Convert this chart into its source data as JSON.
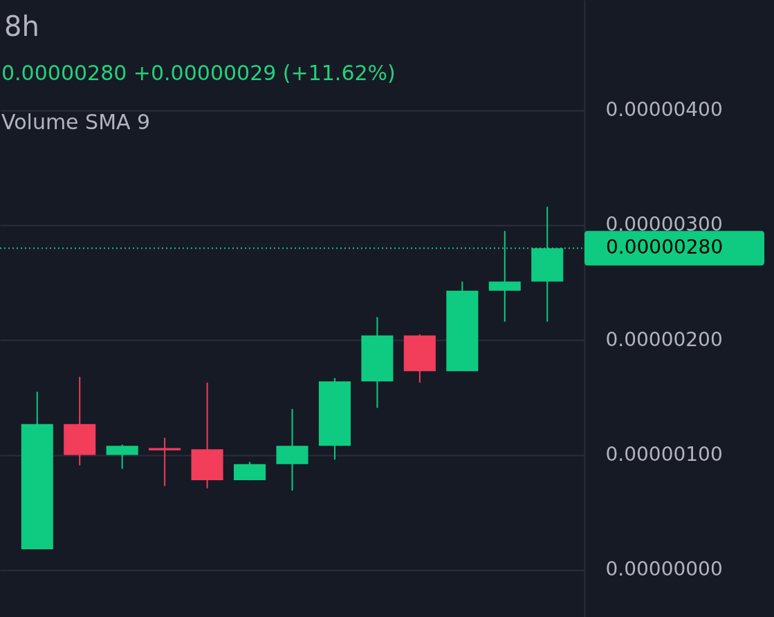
{
  "chart_data": {
    "type": "candlestick",
    "title": "8h",
    "annotations": [
      "0.00000280  +0.00000029 (+11.62%)",
      "Volume SMA 9"
    ],
    "categories": [
      null,
      null,
      null,
      null,
      null,
      null,
      null,
      null,
      null,
      null,
      null,
      null,
      null
    ],
    "ohlc": [
      [
        1.8e-07,
        1.55e-06,
        1.8e-07,
        1.27e-06
      ],
      [
        1.27e-06,
        1.68e-06,
        9.1e-07,
        1e-06
      ],
      [
        1e-06,
        1.09e-06,
        8.8e-07,
        1.08e-06
      ],
      [
        1.06e-06,
        1.15e-06,
        7.3e-07,
        1.04e-06
      ],
      [
        1.05e-06,
        1.63e-06,
        7.1e-07,
        7.8e-07
      ],
      [
        7.8e-07,
        9.4e-07,
        7.8e-07,
        9.2e-07
      ],
      [
        9.2e-07,
        1.4e-06,
        6.9e-07,
        1.08e-06
      ],
      [
        1.08e-06,
        1.67e-06,
        9.6e-07,
        1.64e-06
      ],
      [
        1.64e-06,
        2.2e-06,
        1.41e-06,
        2.04e-06
      ],
      [
        2.04e-06,
        2.05e-06,
        1.63e-06,
        1.73e-06
      ],
      [
        1.73e-06,
        2.51e-06,
        1.73e-06,
        2.43e-06
      ],
      [
        2.43e-06,
        2.95e-06,
        2.16e-06,
        2.51e-06
      ],
      [
        2.51e-06,
        3.16e-06,
        2.16e-06,
        2.8e-06
      ]
    ],
    "colors": [
      "#0ecb81",
      "#f23d5b",
      "#0ecb81",
      "#f23d5b",
      "#f23d5b",
      "#0ecb81",
      "#0ecb81",
      "#0ecb81",
      "#0ecb81",
      "#f23d5b",
      "#0ecb81",
      "#0ecb81",
      "#0ecb81"
    ],
    "ylim": [
      -4.1e-07,
      4.96e-06
    ],
    "yticks": [
      {
        "value": 0,
        "label": "0.00000000"
      },
      {
        "value": 1e-06,
        "label": "0.00000100"
      },
      {
        "value": 2e-06,
        "label": "0.00000200"
      },
      {
        "value": 3e-06,
        "label": "0.00000300"
      },
      {
        "value": 4e-06,
        "label": "0.00000400"
      }
    ],
    "ref_lines": [
      {
        "axis": "y",
        "value": 2.8e-06,
        "label": "0.00000280",
        "color": "#0ecb81",
        "line_style": "dotted"
      }
    ],
    "grid": "y",
    "tick_labels": "y"
  }
}
